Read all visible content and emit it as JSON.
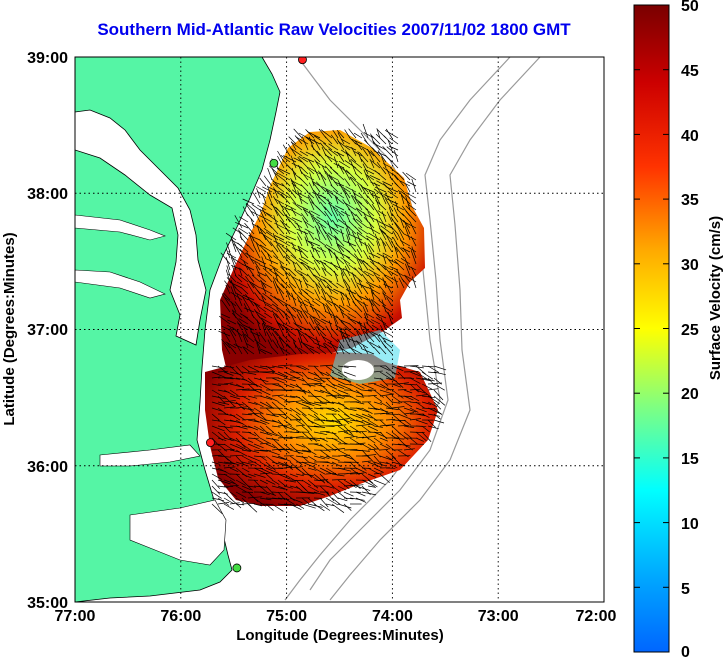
{
  "title": "Southern Mid-Atlantic Raw Velocities 2007/11/02 1800 GMT",
  "map": {
    "xlabel": "Longitude (Degrees:Minutes)",
    "ylabel": "Latitude (Degrees:Minutes)",
    "x_ticks": [
      "77:00",
      "76:00",
      "75:00",
      "74:00",
      "73:00",
      "72:00"
    ],
    "y_ticks": [
      "39:00",
      "38:00",
      "37:00",
      "36:00",
      "35:00"
    ],
    "lon_range": [
      -77,
      -72
    ],
    "lat_range": [
      35,
      39
    ],
    "grid": "dotted",
    "land_color": "#55f5a5",
    "water_color": "#ffffff",
    "stations": [
      {
        "lon": -74.85,
        "lat": 38.98,
        "color": "#ff2020"
      },
      {
        "lon": -75.12,
        "lat": 38.22,
        "color": "#44dd44"
      },
      {
        "lon": -75.72,
        "lat": 36.17,
        "color": "#ff2020"
      },
      {
        "lon": -75.47,
        "lat": 35.25,
        "color": "#44dd44"
      }
    ]
  },
  "colorbar": {
    "label": "Surface Velocity (cm/s)",
    "ticks": [
      "50",
      "45",
      "40",
      "35",
      "30",
      "25",
      "20",
      "15",
      "10",
      "5",
      "0"
    ],
    "min": 0,
    "max": 50,
    "colormap": "jet"
  }
}
